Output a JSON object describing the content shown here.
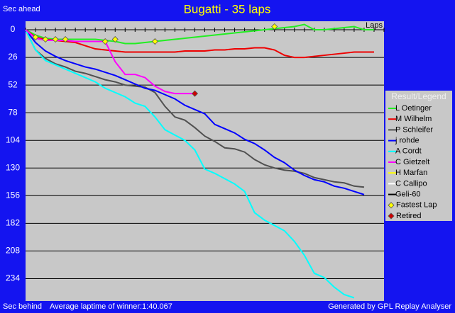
{
  "chart_data": {
    "type": "line",
    "title": "Bugatti - 35 laps",
    "y_label_top": "Sec ahead",
    "y_label_bottom": "Sec behind",
    "x_label": "Laps",
    "footer_left": "Average laptime of winner:1:40.067",
    "footer_right": "Generated by GPL Replay Analyser",
    "legend_title": "Result/Legend",
    "y_inverted": true,
    "grid": true,
    "xlim": [
      0,
      36
    ],
    "ylim": [
      -8,
      255
    ],
    "xticks": [
      0,
      1,
      2,
      3,
      4,
      5,
      6,
      7,
      8,
      9,
      10,
      11,
      12,
      13,
      14,
      15,
      16,
      17,
      18,
      19,
      20,
      21,
      22,
      23,
      24,
      25,
      26,
      27,
      28,
      29,
      30,
      31,
      32,
      33,
      34,
      35,
      36
    ],
    "yticks": [
      0,
      26,
      52,
      78,
      104,
      130,
      156,
      182,
      208,
      234
    ],
    "x": [
      0,
      1,
      2,
      3,
      4,
      5,
      6,
      7,
      8,
      9,
      10,
      11,
      12,
      13,
      14,
      15,
      16,
      17,
      18,
      19,
      20,
      21,
      22,
      23,
      24,
      25,
      26,
      27,
      28,
      29,
      30,
      31,
      32,
      33,
      34,
      35
    ],
    "series": [
      {
        "name": "L Oetinger",
        "color": "#22ee22",
        "values": [
          0,
          5,
          8,
          9,
          9,
          9,
          9,
          9,
          10,
          11,
          13,
          13,
          12,
          11,
          10,
          9,
          8,
          7,
          6,
          5,
          4,
          3,
          2,
          1,
          0,
          -1,
          -2,
          -3,
          -5,
          0,
          0,
          -1,
          -2,
          -3,
          0,
          0
        ]
      },
      {
        "name": "M Wilhelm",
        "color": "#ee0000",
        "values": [
          0,
          7,
          9,
          10,
          11,
          12,
          15,
          18,
          19,
          20,
          21,
          21,
          21,
          21,
          21,
          21,
          20,
          20,
          20,
          19,
          19,
          18,
          18,
          17,
          17,
          19,
          24,
          26,
          26,
          25,
          24,
          23,
          22,
          21,
          21,
          21
        ]
      },
      {
        "name": "P Schleifer",
        "color": "#505050",
        "values": [
          0,
          19,
          27,
          32,
          35,
          39,
          41,
          44,
          47,
          49,
          52,
          53,
          54,
          59,
          72,
          82,
          85,
          92,
          100,
          105,
          111,
          112,
          115,
          122,
          127,
          130,
          132,
          133,
          135,
          139,
          141,
          143,
          144,
          147,
          148,
          null
        ]
      },
      {
        "name": "j rohde",
        "color": "#0000ff",
        "values": [
          0,
          12,
          20,
          25,
          29,
          32,
          35,
          37,
          40,
          43,
          47,
          51,
          55,
          57,
          61,
          65,
          71,
          75,
          79,
          89,
          93,
          97,
          103,
          107,
          113,
          120,
          125,
          132,
          137,
          141,
          143,
          147,
          149,
          152,
          155,
          null
        ]
      },
      {
        "name": "A Cordt",
        "color": "#00ffff",
        "values": [
          0,
          19,
          29,
          33,
          37,
          41,
          45,
          49,
          55,
          59,
          63,
          69,
          72,
          82,
          94,
          99,
          104,
          113,
          131,
          135,
          140,
          145,
          152,
          172,
          179,
          184,
          189,
          199,
          212,
          229,
          233,
          242,
          249,
          252,
          null,
          null
        ]
      },
      {
        "name": "C Gietzelt",
        "color": "#ff00ff",
        "values": [
          0,
          8,
          10,
          10,
          10,
          11,
          11,
          11,
          11,
          30,
          42,
          42,
          45,
          53,
          58,
          60,
          60,
          60,
          null,
          null,
          null,
          null,
          null,
          null,
          null,
          null,
          null,
          null,
          null,
          null,
          null,
          null,
          null,
          null,
          null,
          null
        ]
      },
      {
        "name": "H Marfan",
        "color": "#ffff00",
        "values": [
          null,
          null,
          null,
          null,
          null,
          null,
          null,
          null,
          null,
          null,
          null,
          null,
          null,
          null,
          null,
          null,
          null,
          null,
          null,
          null,
          null,
          null,
          null,
          null,
          null,
          null,
          null,
          null,
          null,
          null,
          null,
          null,
          null,
          null,
          null,
          null
        ]
      },
      {
        "name": "C Callipo",
        "color": "#ffffff",
        "values": [
          null,
          null,
          null,
          null,
          null,
          null,
          null,
          null,
          null,
          null,
          null,
          null,
          null,
          null,
          null,
          null,
          null,
          null,
          null,
          null,
          null,
          null,
          null,
          null,
          null,
          null,
          null,
          null,
          null,
          null,
          null,
          null,
          null,
          null,
          null,
          null
        ]
      },
      {
        "name": "Geli-60",
        "color": "#000000",
        "values": [
          null,
          null,
          null,
          null,
          null,
          null,
          null,
          null,
          null,
          null,
          null,
          null,
          null,
          null,
          null,
          null,
          null,
          null,
          null,
          null,
          null,
          null,
          null,
          null,
          null,
          null,
          null,
          null,
          null,
          null,
          null,
          null,
          null,
          null,
          null,
          null
        ]
      }
    ],
    "markers": [
      {
        "name": "Fastest Lap",
        "color": "#ffff00",
        "x": [
          1,
          2,
          3,
          4,
          8,
          9,
          13,
          25
        ],
        "values": [
          7,
          9,
          9,
          9,
          11,
          9,
          11,
          -3
        ]
      },
      {
        "name": "Retired",
        "color": "#cc0000",
        "x": [
          17
        ],
        "values": [
          60
        ]
      }
    ]
  }
}
